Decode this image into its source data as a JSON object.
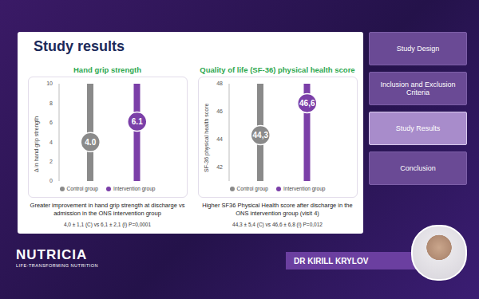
{
  "slide_title": "Study results",
  "chart_data": [
    {
      "type": "dot",
      "title": "Hand grip strength",
      "y_label": "Δ in hand grip strength",
      "categories": [
        "Control group",
        "Intervention group"
      ],
      "values": [
        4.0,
        6.1
      ],
      "value_labels": [
        "4.0",
        "6.1"
      ],
      "colors": [
        "#8a8a8a",
        "#7b3fa8"
      ],
      "ylim": [
        0,
        10
      ],
      "yticks": [
        0,
        2,
        4,
        6,
        8,
        10
      ],
      "grid": false,
      "data_labels": true,
      "tick_labels": "y",
      "legend": "bottom",
      "caption": "Greater improvement in hand grip strength at discharge vs admission in the ONS intervention group",
      "stats": "4,0 ± 1,1 (C) vs 6,1 ± 2,1 (I) P=0,0001"
    },
    {
      "type": "dot",
      "title": "Quality of life (SF-36) physical health score",
      "y_label": "SF-36 physical health score",
      "categories": [
        "Control group",
        "Intervention group"
      ],
      "values": [
        44.3,
        46.6
      ],
      "value_labels": [
        "44,3",
        "46,6"
      ],
      "colors": [
        "#8a8a8a",
        "#7b3fa8"
      ],
      "ylim": [
        41,
        48
      ],
      "yticks": [
        42,
        44,
        46,
        48
      ],
      "grid": false,
      "data_labels": true,
      "tick_labels": "y",
      "legend": "bottom",
      "caption": "Higher SF36 Physical Health score after discharge in the ONS intervention group (visit 4)",
      "stats": "44,3 ± 5,4 (C) vs 46,6 ± 6,8 (I) P=0,012"
    }
  ],
  "sidebar": [
    "Study Design",
    "Inclusion and Exclusion Criteria",
    "Study Results",
    "Conclusion"
  ],
  "active_item": "Study Results",
  "speaker": "DR KIRILL KRYLOV",
  "logo": "NUTRICIA",
  "logo_tagline": "LIFE-TRANSFORMING NUTRITION"
}
